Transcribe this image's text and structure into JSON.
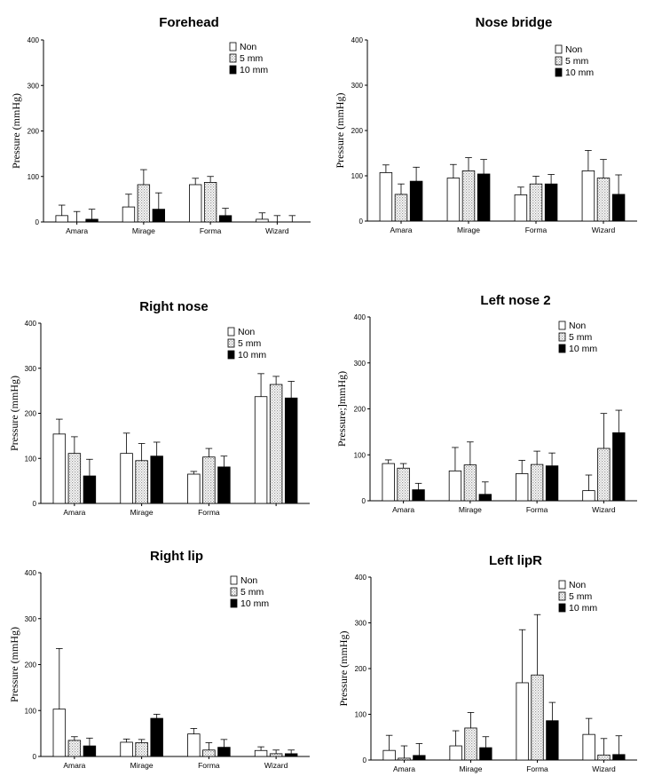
{
  "figure": {
    "legend": [
      "Non",
      "5 mm",
      "10 mm"
    ],
    "series_styles": {
      "Non": "#ffffff",
      "5 mm": "#e6e6e6",
      "10 mm": "#000000"
    }
  },
  "chart_data": [
    {
      "id": "forehead",
      "type": "bar",
      "title": "Forehead",
      "ylabel": "Pressure (mmHg)",
      "ylim": [
        0,
        400
      ],
      "yticks": [
        "0",
        "100",
        "200",
        "300",
        "400"
      ],
      "categories": [
        "Amara",
        "Mirage",
        "Forma",
        "Wizard"
      ],
      "series": [
        {
          "name": "Non",
          "values": [
            14,
            33,
            82,
            6
          ],
          "errors": [
            23,
            28,
            14,
            14
          ]
        },
        {
          "name": "5 mm",
          "values": [
            0,
            82,
            87,
            0
          ],
          "errors": [
            23,
            33,
            13,
            14
          ]
        },
        {
          "name": "10 mm",
          "values": [
            6,
            28,
            14,
            0
          ],
          "errors": [
            22,
            36,
            16,
            14
          ]
        }
      ]
    },
    {
      "id": "nose-bridge",
      "type": "bar",
      "title": "Nose bridge",
      "ylabel": "Pressure (mmHg)",
      "ylim": [
        0,
        400
      ],
      "yticks": [
        "0",
        "100",
        "200",
        "300",
        "400"
      ],
      "categories": [
        "Amara",
        "Mirage",
        "Forma",
        "Wizard"
      ],
      "series": [
        {
          "name": "Non",
          "values": [
            107,
            95,
            58,
            111
          ],
          "errors": [
            17,
            30,
            17,
            45
          ]
        },
        {
          "name": "5 mm",
          "values": [
            59,
            111,
            82,
            95
          ],
          "errors": [
            23,
            29,
            17,
            41
          ]
        },
        {
          "name": "10 mm",
          "values": [
            88,
            104,
            82,
            59
          ],
          "errors": [
            31,
            32,
            21,
            43
          ]
        }
      ]
    },
    {
      "id": "right-nose",
      "type": "bar",
      "title": "Right nose",
      "ylabel": "Pressure (mmHg)",
      "ylim": [
        0,
        400
      ],
      "yticks": [
        "0",
        "100",
        "200",
        "300",
        "400"
      ],
      "categories": [
        "Amara",
        "Mirage",
        "Forma",
        ""
      ],
      "series": [
        {
          "name": "Non",
          "values": [
            154,
            111,
            65,
            237
          ],
          "errors": [
            33,
            45,
            6,
            51
          ]
        },
        {
          "name": "5 mm",
          "values": [
            111,
            95,
            103,
            264
          ],
          "errors": [
            37,
            38,
            19,
            18
          ]
        },
        {
          "name": "10 mm",
          "values": [
            61,
            105,
            81,
            234
          ],
          "errors": [
            37,
            31,
            24,
            37
          ]
        }
      ]
    },
    {
      "id": "left-nose-2",
      "type": "bar",
      "title": "Left nose 2",
      "ylabel": "Pressure;]mmHg)",
      "ylim": [
        0,
        400
      ],
      "yticks": [
        "0",
        "100",
        "200",
        "300",
        "400"
      ],
      "categories": [
        "Amara",
        "Mirage",
        "Forma",
        "Wizard"
      ],
      "series": [
        {
          "name": "Non",
          "values": [
            81,
            65,
            59,
            22
          ],
          "errors": [
            8,
            51,
            29,
            34
          ]
        },
        {
          "name": "5 mm",
          "values": [
            71,
            78,
            79,
            114
          ],
          "errors": [
            10,
            50,
            29,
            76
          ]
        },
        {
          "name": "10 mm",
          "values": [
            24,
            14,
            76,
            148
          ],
          "errors": [
            14,
            27,
            28,
            49
          ]
        }
      ]
    },
    {
      "id": "right-lip",
      "type": "bar",
      "title": "Right lip",
      "ylabel": "Pressure (mmHg)",
      "ylim": [
        0,
        400
      ],
      "yticks": [
        "0",
        "100",
        "200",
        "300",
        "400"
      ],
      "categories": [
        "Amara",
        "Mirage",
        "Forma",
        "Wizard"
      ],
      "series": [
        {
          "name": "Non",
          "values": [
            103,
            31,
            49,
            13
          ],
          "errors": [
            132,
            7,
            12,
            8
          ]
        },
        {
          "name": "5 mm",
          "values": [
            35,
            30,
            14,
            6
          ],
          "errors": [
            8,
            7,
            16,
            8
          ]
        },
        {
          "name": "10 mm",
          "values": [
            23,
            83,
            20,
            6
          ],
          "errors": [
            17,
            9,
            17,
            8
          ]
        }
      ]
    },
    {
      "id": "left-lipR",
      "type": "bar",
      "title": "Left lipR",
      "ylabel": "Pressure (mmHg)",
      "ylim": [
        0,
        400
      ],
      "yticks": [
        "0",
        "100",
        "200",
        "300",
        "400"
      ],
      "categories": [
        "Amara",
        "Mirage",
        "Forma",
        "Wizard"
      ],
      "series": [
        {
          "name": "Non",
          "values": [
            21,
            31,
            169,
            56
          ],
          "errors": [
            33,
            33,
            116,
            35
          ]
        },
        {
          "name": "5 mm",
          "values": [
            4,
            70,
            186,
            11
          ],
          "errors": [
            27,
            34,
            132,
            36
          ]
        },
        {
          "name": "10 mm",
          "values": [
            10,
            27,
            86,
            12
          ],
          "errors": [
            26,
            24,
            40,
            41
          ]
        }
      ]
    }
  ]
}
